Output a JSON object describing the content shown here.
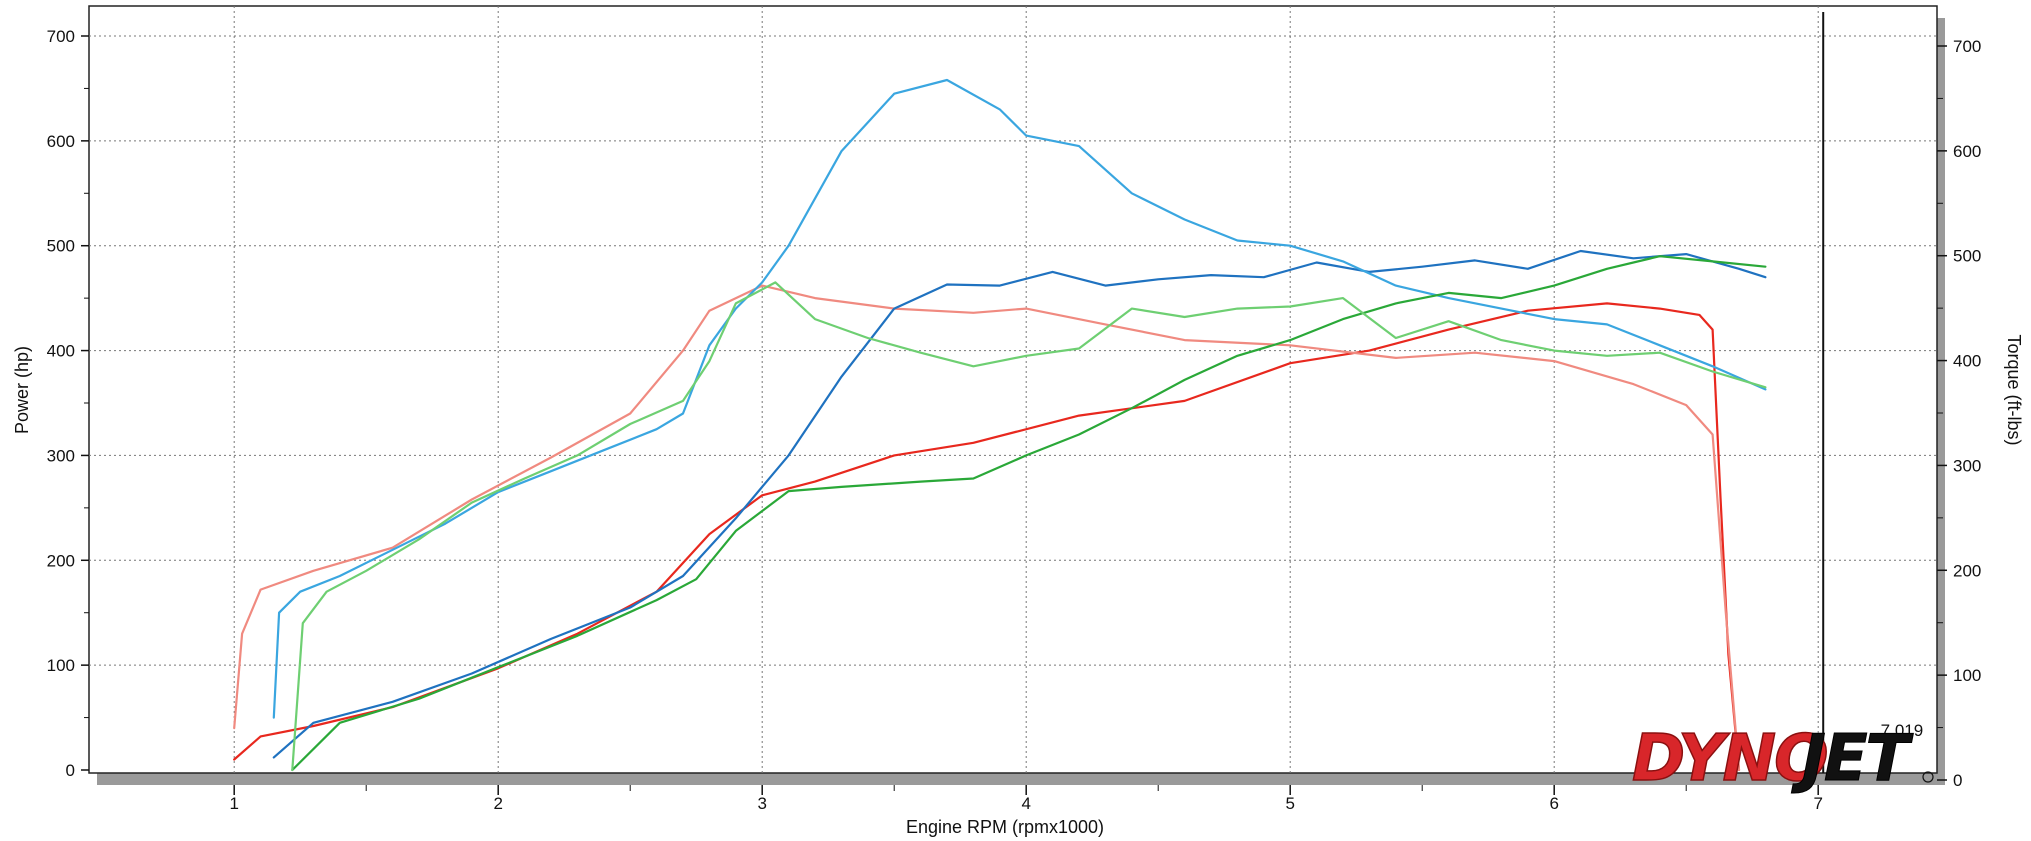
{
  "chart_data": {
    "type": "line",
    "xlabel": "Engine RPM (rpmx1000)",
    "ylabel": "Power (hp)",
    "y2label": "Torque (ft-lbs)",
    "xlim": [
      0.45,
      7.45
    ],
    "ylim": [
      0,
      700
    ],
    "y2lim": [
      0,
      700
    ],
    "x_ticks": [
      "1",
      "2",
      "3",
      "4",
      "5",
      "6",
      "7"
    ],
    "y_ticks": [
      "0",
      "100",
      "200",
      "300",
      "400",
      "500",
      "600",
      "700"
    ],
    "y2_ticks": [
      "0",
      "100",
      "200",
      "300",
      "400",
      "500",
      "600",
      "700"
    ],
    "grid": true,
    "marker_label": "7.019",
    "marker_x": 7.019,
    "series": [
      {
        "color": "#e8281e",
        "x": [
          1.0,
          1.1,
          1.3,
          1.6,
          2.0,
          2.3,
          2.6,
          2.8,
          3.0,
          3.2,
          3.5,
          3.8,
          4.2,
          4.6,
          5.0,
          5.3,
          5.6,
          5.9,
          6.2,
          6.4,
          6.55,
          6.6,
          6.63,
          6.66,
          6.7
        ],
        "values": [
          10,
          32,
          42,
          60,
          97,
          130,
          170,
          225,
          262,
          275,
          300,
          312,
          338,
          352,
          388,
          400,
          420,
          438,
          445,
          440,
          434,
          420,
          260,
          110,
          0
        ]
      },
      {
        "color": "#f08a80",
        "x": [
          1.0,
          1.03,
          1.1,
          1.3,
          1.6,
          1.9,
          2.2,
          2.5,
          2.7,
          2.8,
          3.0,
          3.2,
          3.5,
          3.8,
          4.0,
          4.3,
          4.6,
          5.0,
          5.4,
          5.7,
          6.0,
          6.3,
          6.5,
          6.6,
          6.65,
          6.7
        ],
        "values": [
          40,
          130,
          172,
          190,
          212,
          258,
          298,
          340,
          400,
          438,
          462,
          450,
          440,
          436,
          440,
          425,
          410,
          405,
          393,
          398,
          390,
          368,
          348,
          320,
          150,
          0
        ]
      },
      {
        "color": "#1f72c0",
        "x": [
          1.15,
          1.3,
          1.6,
          1.9,
          2.2,
          2.5,
          2.7,
          2.9,
          3.1,
          3.3,
          3.5,
          3.7,
          3.9,
          4.1,
          4.3,
          4.5,
          4.7,
          4.9,
          5.1,
          5.3,
          5.5,
          5.7,
          5.9,
          6.1,
          6.3,
          6.5,
          6.7,
          6.8
        ],
        "values": [
          12,
          45,
          65,
          92,
          125,
          155,
          185,
          240,
          300,
          375,
          440,
          463,
          462,
          475,
          462,
          468,
          472,
          470,
          484,
          475,
          480,
          486,
          478,
          495,
          488,
          492,
          478,
          470
        ]
      },
      {
        "color": "#3aa6e0",
        "x": [
          1.15,
          1.17,
          1.25,
          1.4,
          1.6,
          1.8,
          2.0,
          2.2,
          2.4,
          2.6,
          2.7,
          2.8,
          2.9,
          3.0,
          3.1,
          3.3,
          3.5,
          3.7,
          3.9,
          4.0,
          4.2,
          4.4,
          4.6,
          4.8,
          5.0,
          5.2,
          5.4,
          5.6,
          5.8,
          6.0,
          6.2,
          6.4,
          6.6,
          6.8
        ],
        "values": [
          50,
          150,
          170,
          185,
          210,
          235,
          265,
          285,
          305,
          325,
          340,
          405,
          440,
          465,
          500,
          590,
          645,
          658,
          630,
          605,
          595,
          550,
          525,
          505,
          500,
          485,
          462,
          450,
          440,
          430,
          425,
          405,
          385,
          363
        ]
      },
      {
        "color": "#2aa838",
        "x": [
          1.22,
          1.4,
          1.7,
          2.0,
          2.3,
          2.6,
          2.75,
          2.9,
          3.1,
          3.3,
          3.6,
          3.8,
          4.0,
          4.2,
          4.4,
          4.6,
          4.8,
          5.0,
          5.2,
          5.4,
          5.6,
          5.8,
          6.0,
          6.2,
          6.4,
          6.6,
          6.8
        ],
        "values": [
          0,
          45,
          68,
          98,
          128,
          162,
          182,
          228,
          266,
          270,
          275,
          278,
          300,
          320,
          345,
          372,
          395,
          410,
          430,
          445,
          455,
          450,
          462,
          478,
          490,
          485,
          480
        ]
      },
      {
        "color": "#6ecf72",
        "x": [
          1.22,
          1.26,
          1.35,
          1.5,
          1.7,
          1.9,
          2.1,
          2.3,
          2.5,
          2.7,
          2.8,
          2.9,
          3.05,
          3.2,
          3.4,
          3.6,
          3.8,
          4.0,
          4.2,
          4.4,
          4.6,
          4.8,
          5.0,
          5.2,
          5.4,
          5.6,
          5.8,
          6.0,
          6.2,
          6.4,
          6.6,
          6.8
        ],
        "values": [
          0,
          140,
          170,
          190,
          220,
          255,
          278,
          300,
          330,
          352,
          390,
          445,
          465,
          430,
          412,
          398,
          385,
          395,
          402,
          440,
          432,
          440,
          442,
          450,
          412,
          428,
          410,
          400,
          395,
          398,
          380,
          365
        ]
      }
    ]
  }
}
